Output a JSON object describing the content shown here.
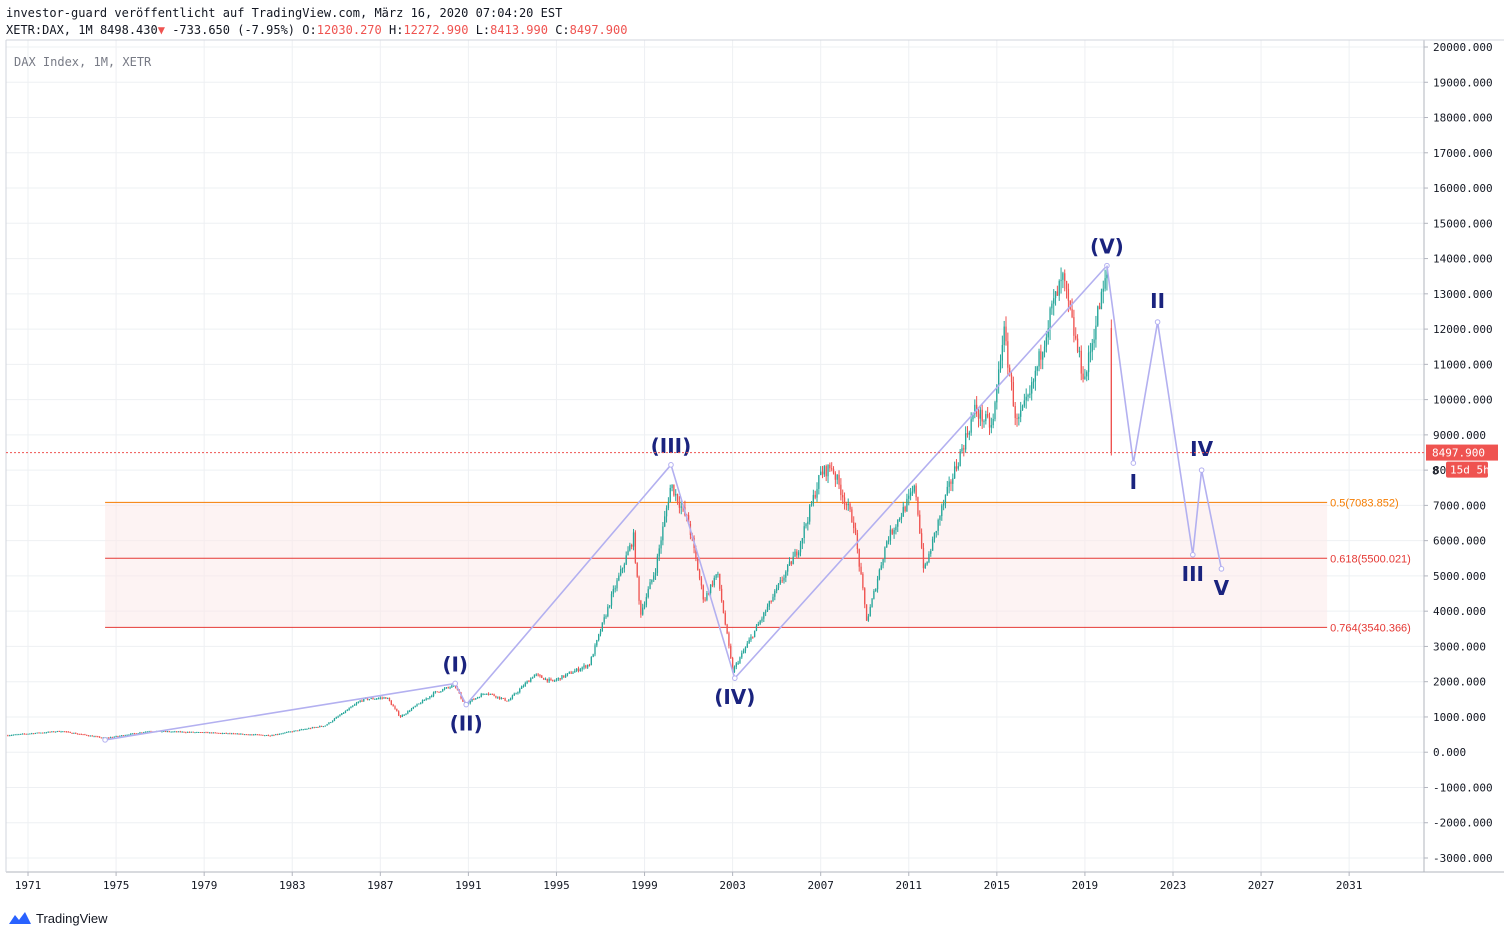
{
  "header": {
    "line1": "investor-guard veröffentlicht auf TradingView.com, März 16, 2020 07:04:20 EST",
    "symbol_label": "XETR:DAX, 1M",
    "last": "8498.430",
    "change_arrow": "▼",
    "change": "-733.650",
    "change_pct": "(-7.95%)",
    "o_label": "O:",
    "open": "12030.270",
    "h_label": "H:",
    "high": "12272.990",
    "l_label": "L:",
    "low": "8413.990",
    "c_label": "C:",
    "close": "8497.900"
  },
  "legend": "DAX Index, 1M, XETR",
  "footer": {
    "brand": "TradingView"
  },
  "colors": {
    "up": "#26a69a",
    "down": "#ef5350",
    "wave": "#b3b0f0",
    "label": "#1a237e",
    "fib_orange": "#f57c00",
    "fib_red": "#e53935"
  },
  "chart_data": {
    "type": "candlestick",
    "title": "DAX Index, 1M, XETR",
    "x_start_year": 1970.0,
    "x_end_year": 2034.4,
    "xlim": [
      1970.0,
      2034.4
    ],
    "ylim": [
      -3400,
      20200
    ],
    "x_ticks": [
      "1971",
      "1975",
      "1979",
      "1983",
      "1987",
      "1991",
      "1995",
      "1999",
      "2003",
      "2007",
      "2011",
      "2015",
      "2019",
      "2023",
      "2027",
      "2031"
    ],
    "y_ticks": [
      "20000.000",
      "19000.000",
      "18000.000",
      "17000.000",
      "16000.000",
      "15000.000",
      "14000.000",
      "13000.000",
      "12000.000",
      "11000.000",
      "10000.000",
      "9000.000",
      "8000.000",
      "7000.000",
      "6000.000",
      "5000.000",
      "4000.000",
      "3000.000",
      "2000.000",
      "1000.000",
      "0.000",
      "-1000.000",
      "-2000.000",
      "-3000.000"
    ],
    "y_tick_values": [
      20000,
      19000,
      18000,
      17000,
      16000,
      15000,
      14000,
      13000,
      12000,
      11000,
      10000,
      9000,
      8000,
      7000,
      6000,
      5000,
      4000,
      3000,
      2000,
      1000,
      0,
      -1000,
      -2000,
      -3000
    ],
    "price_path": [
      [
        1970.0,
        480
      ],
      [
        1972.5,
        600
      ],
      [
        1974.5,
        400
      ],
      [
        1976.5,
        600
      ],
      [
        1979.0,
        560
      ],
      [
        1982.0,
        480
      ],
      [
        1984.5,
        760
      ],
      [
        1986.2,
        1500
      ],
      [
        1987.3,
        1550
      ],
      [
        1987.9,
        1000
      ],
      [
        1989.5,
        1700
      ],
      [
        1990.4,
        1900
      ],
      [
        1990.8,
        1350
      ],
      [
        1991.8,
        1700
      ],
      [
        1992.8,
        1450
      ],
      [
        1994.0,
        2200
      ],
      [
        1994.8,
        2000
      ],
      [
        1996.5,
        2500
      ],
      [
        1997.5,
        4400
      ],
      [
        1998.5,
        6100
      ],
      [
        1998.8,
        3900
      ],
      [
        1999.5,
        5200
      ],
      [
        2000.2,
        7600
      ],
      [
        2001.0,
        6500
      ],
      [
        2001.7,
        4300
      ],
      [
        2002.3,
        5100
      ],
      [
        2003.0,
        2300
      ],
      [
        2004.5,
        4000
      ],
      [
        2006.0,
        5800
      ],
      [
        2007.0,
        7900
      ],
      [
        2007.5,
        8100
      ],
      [
        2008.5,
        6500
      ],
      [
        2009.1,
        3700
      ],
      [
        2010.0,
        6000
      ],
      [
        2011.3,
        7500
      ],
      [
        2011.7,
        5100
      ],
      [
        2012.5,
        6900
      ],
      [
        2014.0,
        9700
      ],
      [
        2014.8,
        9200
      ],
      [
        2015.3,
        12000
      ],
      [
        2015.9,
        9300
      ],
      [
        2016.5,
        10100
      ],
      [
        2017.5,
        12600
      ],
      [
        2018.0,
        13400
      ],
      [
        2018.8,
        11000
      ],
      [
        2019.0,
        10600
      ],
      [
        2019.6,
        12500
      ],
      [
        2020.0,
        13500
      ],
      [
        2020.2,
        8498
      ]
    ],
    "projection": {
      "labels": [
        "I",
        "II",
        "III",
        "IV",
        "V"
      ],
      "points": [
        [
          2021.2,
          8200
        ],
        [
          2022.3,
          12200
        ],
        [
          2023.9,
          5600
        ],
        [
          2024.3,
          8000
        ],
        [
          2025.2,
          5200
        ]
      ]
    },
    "wave_labels": [
      {
        "text": "(I)",
        "year": 1990.4,
        "value": 1950
      },
      {
        "text": "(II)",
        "year": 1990.9,
        "value": 1350
      },
      {
        "text": "(III)",
        "year": 2000.2,
        "value": 8150
      },
      {
        "text": "(IV)",
        "year": 2003.1,
        "value": 2100
      },
      {
        "text": "(V)",
        "year": 2020.0,
        "value": 13800
      }
    ],
    "wave_anchors": [
      [
        1974.5,
        350
      ],
      [
        1990.4,
        1950
      ],
      [
        1990.9,
        1350
      ],
      [
        2000.2,
        8150
      ],
      [
        2003.1,
        2100
      ],
      [
        2020.0,
        13800
      ]
    ],
    "fib_levels": [
      {
        "ratio": "0.5",
        "value": 7083.852,
        "label": "0.5(7083.852)",
        "color": "#f57c00"
      },
      {
        "ratio": "0.618",
        "value": 5500.021,
        "label": "0.618(5500.021)",
        "color": "#e53935"
      },
      {
        "ratio": "0.764",
        "value": 3540.366,
        "label": "0.764(3540.366)",
        "color": "#e53935"
      }
    ],
    "fib_range": {
      "from_year": 1974.5,
      "to_year": 2030.0
    },
    "current_price": {
      "value": 8497.9,
      "label": "8497.900",
      "countdown": "15d 5h",
      "partial_tick": "8"
    }
  }
}
